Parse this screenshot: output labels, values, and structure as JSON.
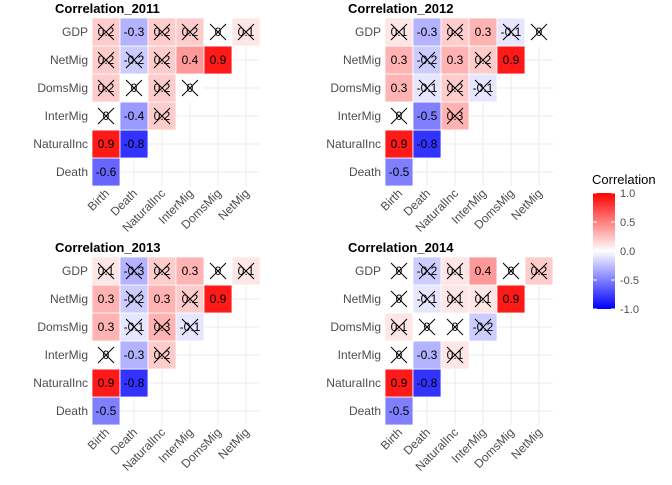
{
  "chart_data": {
    "type": "heatmap",
    "variables": [
      "Birth",
      "Death",
      "NaturalInc",
      "InterMig",
      "DomsMig",
      "NetMig",
      "GDP"
    ],
    "x_categories": [
      "Birth",
      "Death",
      "NaturalInc",
      "InterMig",
      "DomsMig",
      "NetMig"
    ],
    "y_categories": [
      "GDP",
      "NetMig",
      "DomsMig",
      "InterMig",
      "NaturalInc",
      "Death"
    ],
    "color_scale": {
      "low": "#0000ff",
      "mid": "#ffffff",
      "high": "#ff0000",
      "limits": [
        -1.0,
        1.0
      ]
    },
    "legend": {
      "title": "Correlation",
      "ticks": [
        1.0,
        0.5,
        0.0,
        -0.5,
        -1.0
      ],
      "tick_labels": [
        "1.0",
        "0.5",
        "0.0",
        "-0.5",
        "-1.0"
      ],
      "placement": "right"
    },
    "panels": [
      {
        "title": "Correlation_2011",
        "cells": [
          {
            "x": "Birth",
            "y": "Death",
            "value": -0.6,
            "label": "-0.6",
            "crossed": false
          },
          {
            "x": "Birth",
            "y": "NaturalInc",
            "value": 0.9,
            "label": "0.9",
            "crossed": false
          },
          {
            "x": "Birth",
            "y": "InterMig",
            "value": 0,
            "label": "0",
            "crossed": true
          },
          {
            "x": "Birth",
            "y": "DomsMig",
            "value": 0.2,
            "label": "0.2",
            "crossed": true
          },
          {
            "x": "Birth",
            "y": "NetMig",
            "value": 0.2,
            "label": "0.2",
            "crossed": true
          },
          {
            "x": "Birth",
            "y": "GDP",
            "value": 0.2,
            "label": "0.2",
            "crossed": true
          },
          {
            "x": "Death",
            "y": "NaturalInc",
            "value": -0.8,
            "label": "-0.8",
            "crossed": false
          },
          {
            "x": "Death",
            "y": "InterMig",
            "value": -0.4,
            "label": "-0.4",
            "crossed": false
          },
          {
            "x": "Death",
            "y": "DomsMig",
            "value": 0,
            "label": "0",
            "crossed": true
          },
          {
            "x": "Death",
            "y": "NetMig",
            "value": -0.2,
            "label": "-0.2",
            "crossed": true
          },
          {
            "x": "Death",
            "y": "GDP",
            "value": -0.3,
            "label": "-0.3",
            "crossed": false
          },
          {
            "x": "NaturalInc",
            "y": "InterMig",
            "value": 0.2,
            "label": "0.2",
            "crossed": true
          },
          {
            "x": "NaturalInc",
            "y": "DomsMig",
            "value": 0.2,
            "label": "0.2",
            "crossed": true
          },
          {
            "x": "NaturalInc",
            "y": "NetMig",
            "value": 0.2,
            "label": "0.2",
            "crossed": true
          },
          {
            "x": "NaturalInc",
            "y": "GDP",
            "value": 0.2,
            "label": "0.2",
            "crossed": true
          },
          {
            "x": "InterMig",
            "y": "DomsMig",
            "value": 0,
            "label": "0",
            "crossed": true
          },
          {
            "x": "InterMig",
            "y": "NetMig",
            "value": 0.4,
            "label": "0.4",
            "crossed": false
          },
          {
            "x": "InterMig",
            "y": "GDP",
            "value": 0.2,
            "label": "0.2",
            "crossed": true
          },
          {
            "x": "DomsMig",
            "y": "NetMig",
            "value": 0.9,
            "label": "0.9",
            "crossed": false
          },
          {
            "x": "DomsMig",
            "y": "GDP",
            "value": 0,
            "label": "0",
            "crossed": true
          },
          {
            "x": "NetMig",
            "y": "GDP",
            "value": 0.1,
            "label": "0.1",
            "crossed": true
          }
        ]
      },
      {
        "title": "Correlation_2012",
        "cells": [
          {
            "x": "Birth",
            "y": "Death",
            "value": -0.5,
            "label": "-0.5",
            "crossed": false
          },
          {
            "x": "Birth",
            "y": "NaturalInc",
            "value": 0.9,
            "label": "0.9",
            "crossed": false
          },
          {
            "x": "Birth",
            "y": "InterMig",
            "value": 0,
            "label": "0",
            "crossed": true
          },
          {
            "x": "Birth",
            "y": "DomsMig",
            "value": 0.3,
            "label": "0.3",
            "crossed": false
          },
          {
            "x": "Birth",
            "y": "NetMig",
            "value": 0.3,
            "label": "0.3",
            "crossed": false
          },
          {
            "x": "Birth",
            "y": "GDP",
            "value": 0.1,
            "label": "0.1",
            "crossed": true
          },
          {
            "x": "Death",
            "y": "NaturalInc",
            "value": -0.8,
            "label": "-0.8",
            "crossed": false
          },
          {
            "x": "Death",
            "y": "InterMig",
            "value": -0.5,
            "label": "-0.5",
            "crossed": false
          },
          {
            "x": "Death",
            "y": "DomsMig",
            "value": -0.1,
            "label": "-0.1",
            "crossed": true
          },
          {
            "x": "Death",
            "y": "NetMig",
            "value": -0.2,
            "label": "-0.2",
            "crossed": true
          },
          {
            "x": "Death",
            "y": "GDP",
            "value": -0.3,
            "label": "-0.3",
            "crossed": false
          },
          {
            "x": "NaturalInc",
            "y": "InterMig",
            "value": 0.3,
            "label": "0.3",
            "crossed": true
          },
          {
            "x": "NaturalInc",
            "y": "DomsMig",
            "value": 0.2,
            "label": "0.2",
            "crossed": true
          },
          {
            "x": "NaturalInc",
            "y": "NetMig",
            "value": 0.3,
            "label": "0.3",
            "crossed": false
          },
          {
            "x": "NaturalInc",
            "y": "GDP",
            "value": 0.2,
            "label": "0.2",
            "crossed": true
          },
          {
            "x": "InterMig",
            "y": "DomsMig",
            "value": -0.1,
            "label": "-0.1",
            "crossed": true
          },
          {
            "x": "InterMig",
            "y": "NetMig",
            "value": 0.2,
            "label": "0.2",
            "crossed": true
          },
          {
            "x": "InterMig",
            "y": "GDP",
            "value": 0.3,
            "label": "0.3",
            "crossed": false
          },
          {
            "x": "DomsMig",
            "y": "NetMig",
            "value": 0.9,
            "label": "0.9",
            "crossed": false
          },
          {
            "x": "DomsMig",
            "y": "GDP",
            "value": -0.1,
            "label": "-0.1",
            "crossed": true
          },
          {
            "x": "NetMig",
            "y": "GDP",
            "value": 0,
            "label": "0",
            "crossed": true
          }
        ]
      },
      {
        "title": "Correlation_2013",
        "cells": [
          {
            "x": "Birth",
            "y": "Death",
            "value": -0.5,
            "label": "-0.5",
            "crossed": false
          },
          {
            "x": "Birth",
            "y": "NaturalInc",
            "value": 0.9,
            "label": "0.9",
            "crossed": false
          },
          {
            "x": "Birth",
            "y": "InterMig",
            "value": 0,
            "label": "0",
            "crossed": true
          },
          {
            "x": "Birth",
            "y": "DomsMig",
            "value": 0.3,
            "label": "0.3",
            "crossed": false
          },
          {
            "x": "Birth",
            "y": "NetMig",
            "value": 0.3,
            "label": "0.3",
            "crossed": false
          },
          {
            "x": "Birth",
            "y": "GDP",
            "value": 0.1,
            "label": "0.1",
            "crossed": true
          },
          {
            "x": "Death",
            "y": "NaturalInc",
            "value": -0.8,
            "label": "-0.8",
            "crossed": false
          },
          {
            "x": "Death",
            "y": "InterMig",
            "value": -0.3,
            "label": "-0.3",
            "crossed": false
          },
          {
            "x": "Death",
            "y": "DomsMig",
            "value": -0.1,
            "label": "-0.1",
            "crossed": true
          },
          {
            "x": "Death",
            "y": "NetMig",
            "value": -0.2,
            "label": "-0.2",
            "crossed": true
          },
          {
            "x": "Death",
            "y": "GDP",
            "value": -0.3,
            "label": "-0.3",
            "crossed": true
          },
          {
            "x": "NaturalInc",
            "y": "InterMig",
            "value": 0.2,
            "label": "0.2",
            "crossed": true
          },
          {
            "x": "NaturalInc",
            "y": "DomsMig",
            "value": 0.3,
            "label": "0.3",
            "crossed": true
          },
          {
            "x": "NaturalInc",
            "y": "NetMig",
            "value": 0.3,
            "label": "0.3",
            "crossed": false
          },
          {
            "x": "NaturalInc",
            "y": "GDP",
            "value": 0.2,
            "label": "0.2",
            "crossed": true
          },
          {
            "x": "InterMig",
            "y": "DomsMig",
            "value": -0.1,
            "label": "-0.1",
            "crossed": true
          },
          {
            "x": "InterMig",
            "y": "NetMig",
            "value": 0.2,
            "label": "0.2",
            "crossed": true
          },
          {
            "x": "InterMig",
            "y": "GDP",
            "value": 0.3,
            "label": "0.3",
            "crossed": false
          },
          {
            "x": "DomsMig",
            "y": "NetMig",
            "value": 0.9,
            "label": "0.9",
            "crossed": false
          },
          {
            "x": "DomsMig",
            "y": "GDP",
            "value": 0,
            "label": "0",
            "crossed": true
          },
          {
            "x": "NetMig",
            "y": "GDP",
            "value": 0.1,
            "label": "0.1",
            "crossed": true
          }
        ]
      },
      {
        "title": "Correlation_2014",
        "cells": [
          {
            "x": "Birth",
            "y": "Death",
            "value": -0.5,
            "label": "-0.5",
            "crossed": false
          },
          {
            "x": "Birth",
            "y": "NaturalInc",
            "value": 0.9,
            "label": "0.9",
            "crossed": false
          },
          {
            "x": "Birth",
            "y": "InterMig",
            "value": 0,
            "label": "0",
            "crossed": true
          },
          {
            "x": "Birth",
            "y": "DomsMig",
            "value": 0.1,
            "label": "0.1",
            "crossed": true
          },
          {
            "x": "Birth",
            "y": "NetMig",
            "value": 0,
            "label": "0",
            "crossed": true
          },
          {
            "x": "Birth",
            "y": "GDP",
            "value": 0,
            "label": "0",
            "crossed": true
          },
          {
            "x": "Death",
            "y": "NaturalInc",
            "value": -0.8,
            "label": "-0.8",
            "crossed": false
          },
          {
            "x": "Death",
            "y": "InterMig",
            "value": -0.3,
            "label": "-0.3",
            "crossed": false
          },
          {
            "x": "Death",
            "y": "DomsMig",
            "value": 0,
            "label": "0",
            "crossed": true
          },
          {
            "x": "Death",
            "y": "NetMig",
            "value": -0.1,
            "label": "-0.1",
            "crossed": true
          },
          {
            "x": "Death",
            "y": "GDP",
            "value": -0.2,
            "label": "-0.2",
            "crossed": true
          },
          {
            "x": "NaturalInc",
            "y": "InterMig",
            "value": 0.1,
            "label": "0.1",
            "crossed": true
          },
          {
            "x": "NaturalInc",
            "y": "DomsMig",
            "value": 0,
            "label": "0",
            "crossed": true
          },
          {
            "x": "NaturalInc",
            "y": "NetMig",
            "value": 0.1,
            "label": "0.1",
            "crossed": true
          },
          {
            "x": "NaturalInc",
            "y": "GDP",
            "value": 0.1,
            "label": "0.1",
            "crossed": true
          },
          {
            "x": "InterMig",
            "y": "DomsMig",
            "value": -0.2,
            "label": "-0.2",
            "crossed": true
          },
          {
            "x": "InterMig",
            "y": "NetMig",
            "value": 0.1,
            "label": "0.1",
            "crossed": true
          },
          {
            "x": "InterMig",
            "y": "GDP",
            "value": 0.4,
            "label": "0.4",
            "crossed": false
          },
          {
            "x": "DomsMig",
            "y": "NetMig",
            "value": 0.9,
            "label": "0.9",
            "crossed": false
          },
          {
            "x": "DomsMig",
            "y": "GDP",
            "value": 0,
            "label": "0",
            "crossed": true
          },
          {
            "x": "NetMig",
            "y": "GDP",
            "value": 0.2,
            "label": "0.2",
            "crossed": true
          }
        ]
      }
    ]
  }
}
